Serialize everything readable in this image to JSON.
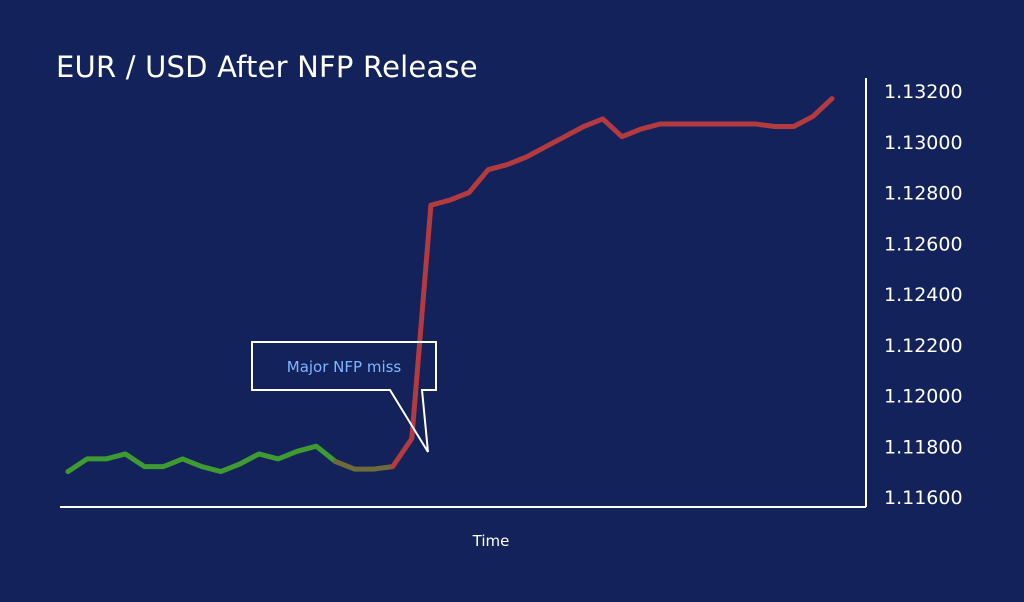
{
  "chart_data": {
    "type": "line",
    "title": "EUR / USD After NFP Release",
    "xlabel": "Time",
    "ylabel": "",
    "ylim": [
      1.116,
      1.132
    ],
    "yticks": [
      "1.11600",
      "1.11800",
      "1.12000",
      "1.12200",
      "1.12400",
      "1.12600",
      "1.12800",
      "1.13000",
      "1.13200"
    ],
    "ytick_values": [
      1.116,
      1.118,
      1.12,
      1.122,
      1.124,
      1.126,
      1.128,
      1.13,
      1.132
    ],
    "yaxis_position": "right",
    "grid": false,
    "legend": "none",
    "x": [
      0,
      1,
      2,
      3,
      4,
      5,
      6,
      7,
      8,
      9,
      10,
      11,
      12,
      13,
      14,
      15,
      16,
      17,
      18,
      19,
      20,
      21,
      22,
      23,
      24,
      25,
      26,
      27,
      28,
      29,
      30,
      31,
      32,
      33,
      34,
      35,
      36,
      37,
      38,
      39,
      40
    ],
    "values": [
      1.117,
      1.1175,
      1.1175,
      1.1177,
      1.1172,
      1.1172,
      1.1175,
      1.1172,
      1.117,
      1.1173,
      1.1177,
      1.1175,
      1.1178,
      1.118,
      1.1174,
      1.1171,
      1.1171,
      1.1172,
      1.1183,
      1.1275,
      1.1277,
      1.128,
      1.1289,
      1.1291,
      1.1294,
      1.1298,
      1.1302,
      1.1306,
      1.1309,
      1.1302,
      1.1305,
      1.1307,
      1.1307,
      1.1307,
      1.1307,
      1.1307,
      1.1307,
      1.1306,
      1.1306,
      1.131,
      1.1317
    ],
    "segments": [
      {
        "from": 0,
        "to": 14,
        "color": "#3f9a32"
      },
      {
        "from": 14,
        "to": 17,
        "color": "#6f6a3c"
      },
      {
        "from": 17,
        "to": 40,
        "color": "#b33a3f"
      }
    ],
    "annotations": [
      {
        "text": "Major NFP miss",
        "points_to_x": 16
      }
    ]
  },
  "colors": {
    "background": "#13225b",
    "axis": "#ffffff",
    "rise": "#b33a3f",
    "flat": "#3f9a32",
    "transition": "#6f6a3c",
    "annotation_text": "#7fb6ff"
  }
}
